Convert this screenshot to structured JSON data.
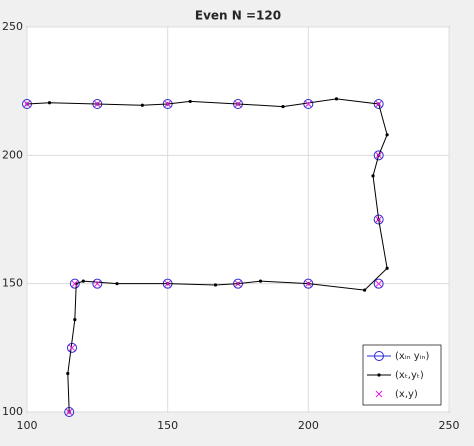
{
  "chart_data": {
    "type": "line",
    "title": "Even N =120",
    "xlim": [
      100,
      250
    ],
    "ylim": [
      100,
      250
    ],
    "xticks": [
      100,
      150,
      200,
      250
    ],
    "yticks": [
      100,
      150,
      200,
      250
    ],
    "grid": true,
    "legend": "lower right",
    "series": [
      {
        "name": "(xᵢₙ yᵢₙ)",
        "color": "#2b2bd4",
        "marker": "circle",
        "line": false,
        "x": [
          115,
          116,
          117,
          125,
          150,
          175,
          200,
          225,
          225,
          225,
          225,
          200,
          175,
          150,
          125,
          100
        ],
        "values": [
          100,
          125,
          150,
          150,
          150,
          150,
          150,
          150,
          175,
          200,
          220,
          220,
          220,
          220,
          220,
          220
        ]
      },
      {
        "name": "(xₜ,yₜ)",
        "color": "#000000",
        "marker": "dot",
        "line": true,
        "x": [
          115,
          114.5,
          117,
          117.5,
          120,
          132,
          150,
          167,
          175,
          183,
          200,
          220,
          228,
          225,
          223,
          225,
          228,
          225,
          210,
          191,
          175,
          158,
          150,
          141,
          125,
          108,
          100
        ],
        "values": [
          100,
          115,
          136,
          150,
          151,
          150,
          150,
          149.5,
          150,
          151,
          150,
          147.5,
          156,
          175,
          192,
          200,
          208,
          220,
          222,
          219,
          220,
          221,
          220,
          219.5,
          220,
          220.5,
          220
        ]
      },
      {
        "name": "(x,y)",
        "color": "#e020e0",
        "marker": "cross",
        "line": false,
        "x": [
          115,
          116,
          117,
          125,
          150,
          175,
          200,
          225,
          225,
          225,
          225,
          200,
          175,
          150,
          125,
          100
        ],
        "values": [
          100,
          125,
          150,
          150,
          150,
          150,
          150,
          150,
          175,
          200,
          220,
          220,
          220,
          220,
          220,
          220
        ]
      }
    ]
  }
}
